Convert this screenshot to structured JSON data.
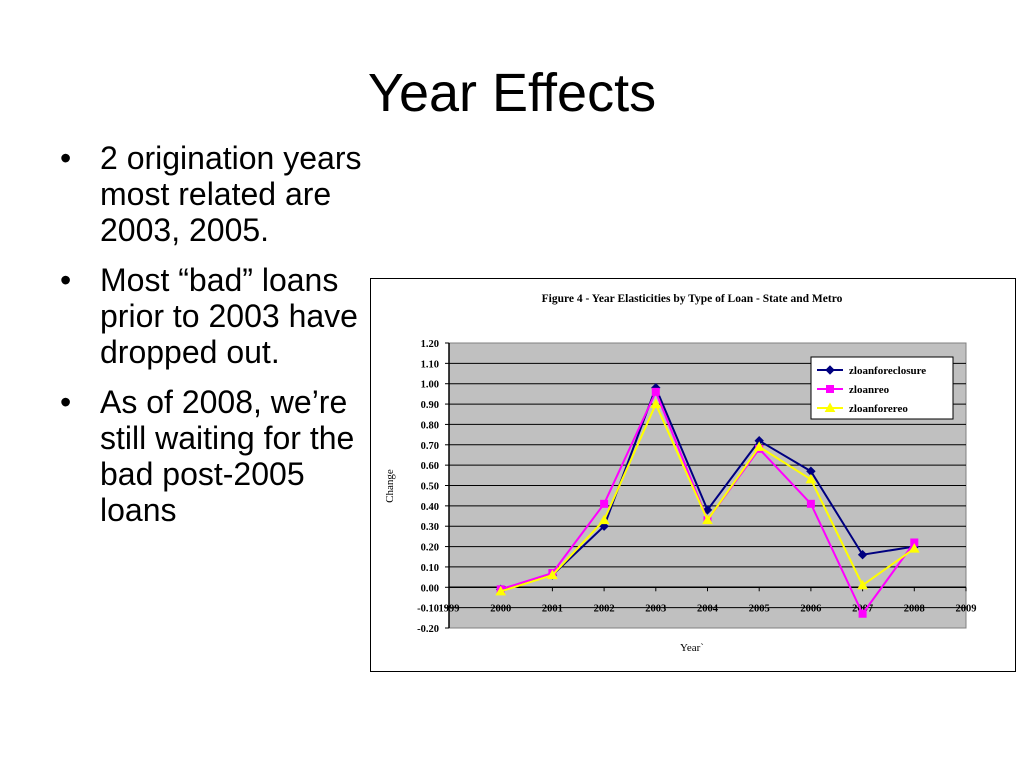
{
  "slide": {
    "title": "Year Effects",
    "bullets": [
      "2 origination years most related are 2003, 2005.",
      "Most “bad” loans prior to 2003 have dropped out.",
      "As of 2008, we’re still waiting for the bad post-2005 loans"
    ],
    "bullet_glyph": "•"
  },
  "chart_data": {
    "type": "line",
    "title": "Figure 4 - Year Elasticities by Type of Loan - State and Metro",
    "xlabel": "Year`",
    "ylabel": "Change",
    "xlim": [
      1999,
      2009
    ],
    "ylim": [
      -0.2,
      1.2
    ],
    "x_ticks": [
      "1999",
      "2000",
      "2001",
      "2002",
      "2003",
      "2004",
      "2005",
      "2006",
      "2007",
      "2008",
      "2009"
    ],
    "y_ticks": [
      "-0.20",
      "-0.10",
      "0.00",
      "0.10",
      "0.20",
      "0.30",
      "0.40",
      "0.50",
      "0.60",
      "0.70",
      "0.80",
      "0.90",
      "1.00",
      "1.10",
      "1.20"
    ],
    "grid": true,
    "legend_position": "top-right",
    "plot_background": "#c0c0c0",
    "x": [
      2000,
      2001,
      2002,
      2003,
      2004,
      2005,
      2006,
      2007,
      2008
    ],
    "series": [
      {
        "name": "zloanforeclosure",
        "color": "#000080",
        "marker": "diamond",
        "values": [
          -0.01,
          0.06,
          0.3,
          0.98,
          0.38,
          0.72,
          0.57,
          0.16,
          0.2
        ]
      },
      {
        "name": "zloanreo",
        "color": "#ff00ff",
        "marker": "square",
        "values": [
          -0.01,
          0.07,
          0.41,
          0.96,
          0.33,
          0.68,
          0.41,
          -0.13,
          0.22
        ]
      },
      {
        "name": "zloanforereo",
        "color": "#ffff00",
        "marker": "triangle",
        "values": [
          -0.02,
          0.06,
          0.33,
          0.9,
          0.33,
          0.69,
          0.53,
          0.01,
          0.19
        ]
      }
    ]
  }
}
